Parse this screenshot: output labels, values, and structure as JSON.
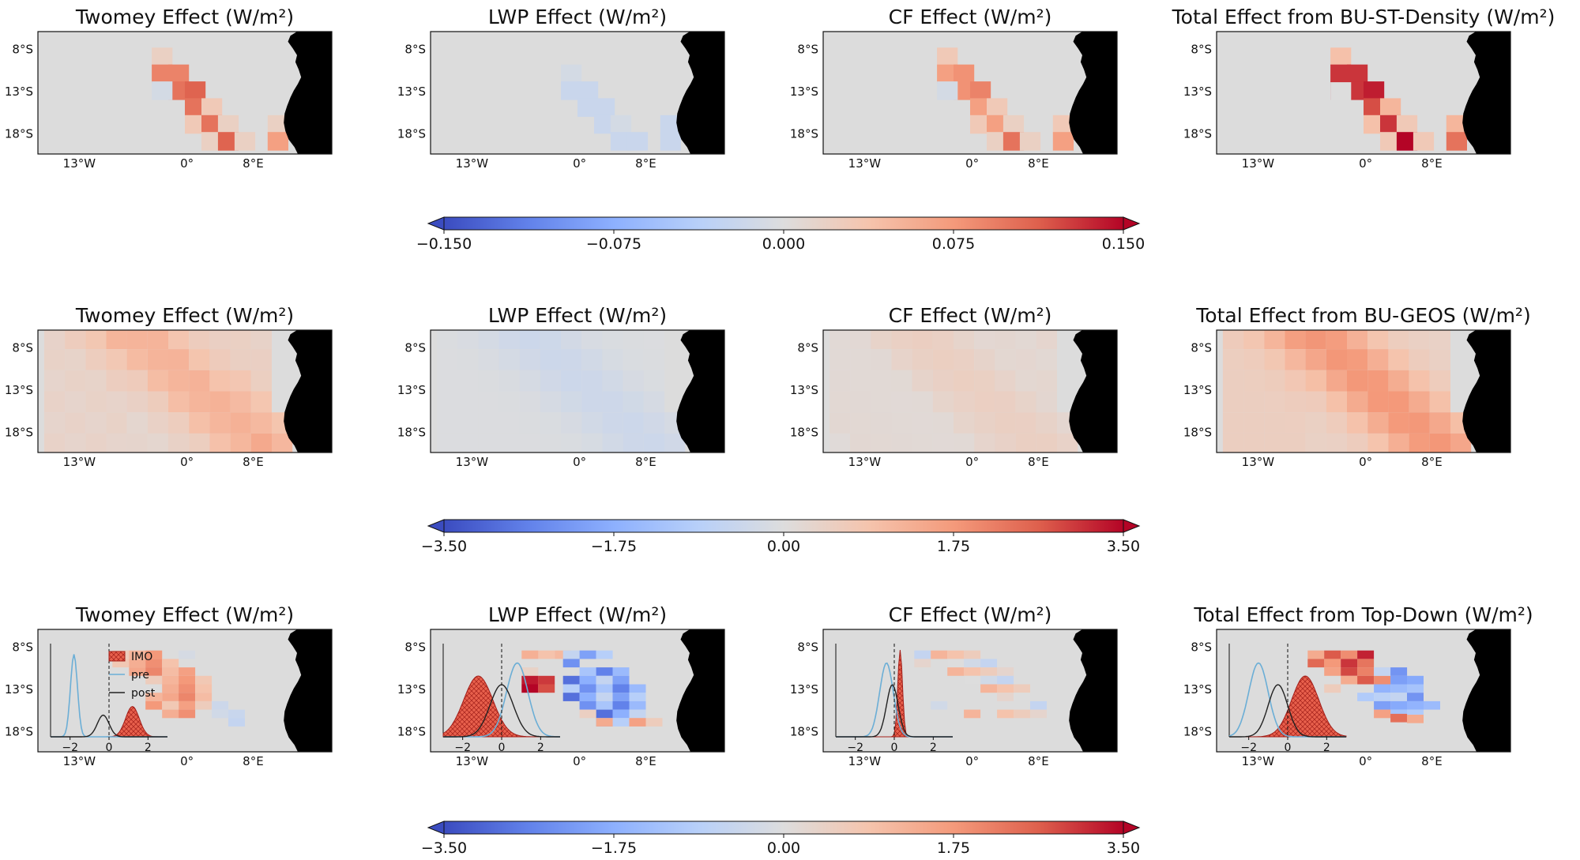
{
  "figure": {
    "rows": [
      {
        "titles": [
          "Twomey Effect (W/m²)",
          "LWP Effect (W/m²)",
          "CF Effect (W/m²)",
          "Total Effect from BU-ST-Density (W/m²)"
        ],
        "colorbar": {
          "ticks": [
            "−0.150",
            "−0.075",
            "0.000",
            "0.075",
            "0.150"
          ],
          "vmin": -0.15,
          "vmax": 0.15
        }
      },
      {
        "titles": [
          "Twomey Effect (W/m²)",
          "LWP Effect (W/m²)",
          "CF Effect (W/m²)",
          "Total Effect from BU-GEOS (W/m²)"
        ],
        "colorbar": {
          "ticks": [
            "−3.50",
            "−1.75",
            "0.00",
            "1.75",
            "3.50"
          ],
          "vmin": -3.5,
          "vmax": 3.5
        }
      },
      {
        "titles": [
          "Twomey Effect (W/m²)",
          "LWP Effect (W/m²)",
          "CF Effect (W/m²)",
          "Total Effect from Top-Down (W/m²)"
        ],
        "colorbar": {
          "ticks": [
            "−3.50",
            "−1.75",
            "0.00",
            "1.75",
            "3.50"
          ],
          "vmin": -3.5,
          "vmax": 3.5
        }
      }
    ],
    "map_axes": {
      "lat_ticks": [
        "8°S",
        "13°S",
        "18°S"
      ],
      "lon_ticks": [
        "13°W",
        "0°",
        "8°E"
      ]
    },
    "inset": {
      "x_ticks": [
        "−2",
        "0",
        "2"
      ],
      "legend": [
        "IMO",
        "pre",
        "post"
      ]
    },
    "colors": {
      "land": "#000000",
      "ocean": "#dcdcdc",
      "neg": "#3b4cc0",
      "pos": "#b40426",
      "pre": "#6baed6",
      "post": "#222222",
      "imo": "#e8604c"
    }
  },
  "chart_data": [
    {
      "type": "heatmap",
      "panel": "row1-twomey",
      "units": "W/m2",
      "cells_lonlat_value": [
        [
          -3,
          -9,
          0.02
        ],
        [
          -3,
          -11,
          0.09
        ],
        [
          -1,
          -11,
          0.09
        ],
        [
          -1,
          -13,
          0.1
        ],
        [
          1,
          -13,
          0.11
        ],
        [
          1,
          -15,
          0.1
        ],
        [
          3,
          -15,
          0.03
        ],
        [
          1,
          -17,
          0.03
        ],
        [
          3,
          -17,
          0.1
        ],
        [
          5,
          -17,
          0.02
        ],
        [
          3,
          -19,
          0.02
        ],
        [
          5,
          -19,
          0.11
        ],
        [
          7,
          -19,
          0.02
        ],
        [
          11,
          -17,
          0.02
        ],
        [
          11,
          -19,
          0.07
        ],
        [
          -3,
          -13,
          -0.01
        ]
      ]
    },
    {
      "type": "heatmap",
      "panel": "row1-lwp",
      "units": "W/m2",
      "cells_lonlat_value": [
        [
          -1,
          -11,
          -0.01
        ],
        [
          -1,
          -13,
          -0.02
        ],
        [
          1,
          -13,
          -0.02
        ],
        [
          1,
          -15,
          -0.02
        ],
        [
          3,
          -15,
          -0.02
        ],
        [
          3,
          -17,
          -0.02
        ],
        [
          5,
          -17,
          -0.01
        ],
        [
          5,
          -19,
          -0.02
        ],
        [
          7,
          -19,
          -0.02
        ],
        [
          11,
          -17,
          -0.02
        ],
        [
          11,
          -19,
          -0.02
        ]
      ]
    },
    {
      "type": "heatmap",
      "panel": "row1-cf",
      "units": "W/m2",
      "cells_lonlat_value": [
        [
          -3,
          -9,
          0.03
        ],
        [
          -3,
          -11,
          0.07
        ],
        [
          -1,
          -11,
          0.08
        ],
        [
          -1,
          -13,
          0.08
        ],
        [
          1,
          -13,
          0.09
        ],
        [
          1,
          -15,
          0.07
        ],
        [
          3,
          -15,
          0.03
        ],
        [
          1,
          -17,
          0.03
        ],
        [
          3,
          -17,
          0.07
        ],
        [
          5,
          -17,
          0.02
        ],
        [
          3,
          -19,
          0.02
        ],
        [
          5,
          -19,
          0.1
        ],
        [
          7,
          -19,
          0.02
        ],
        [
          11,
          -17,
          0.03
        ],
        [
          11,
          -19,
          0.07
        ],
        [
          -3,
          -13,
          -0.01
        ]
      ]
    },
    {
      "type": "heatmap",
      "panel": "row1-total",
      "units": "W/m2",
      "cells_lonlat_value": [
        [
          -3,
          -9,
          0.04
        ],
        [
          -3,
          -11,
          0.13
        ],
        [
          -1,
          -11,
          0.13
        ],
        [
          -3,
          -13,
          0.13
        ],
        [
          -1,
          -13,
          0.13
        ],
        [
          1,
          -13,
          0.14
        ],
        [
          -3,
          -13.1,
          0.0
        ],
        [
          1,
          -15,
          0.12
        ],
        [
          3,
          -15,
          0.05
        ],
        [
          1,
          -17,
          0.04
        ],
        [
          3,
          -17,
          0.13
        ],
        [
          5,
          -17,
          0.03
        ],
        [
          3,
          -19,
          0.03
        ],
        [
          5,
          -19,
          0.15
        ],
        [
          7,
          -19,
          0.03
        ],
        [
          11,
          -17,
          0.05
        ],
        [
          11,
          -19,
          0.1
        ]
      ]
    },
    {
      "type": "heatmap",
      "panel": "row2-twomey",
      "units": "W/m2",
      "pattern": "broad weak positive, max about 1.2 along -2 to 4 lon diagonal"
    },
    {
      "type": "heatmap",
      "panel": "row2-lwp",
      "units": "W/m2",
      "pattern": "weak negative about -0.3 along diagonal"
    },
    {
      "type": "heatmap",
      "panel": "row2-cf",
      "units": "W/m2",
      "pattern": "weak positive about 0.5"
    },
    {
      "type": "heatmap",
      "panel": "row2-total",
      "units": "W/m2",
      "pattern": "positive up to about 1.5 along diagonal"
    },
    {
      "type": "heatmap",
      "panel": "row3-twomey",
      "units": "W/m2",
      "pattern": "positive 0.5-2.0 along -6..4 lon diagonal, few small negative cells near 4..6E",
      "inset": {
        "imo_peak": 1.2,
        "pre_peak": -1.8,
        "post_peak": -0.3
      }
    },
    {
      "type": "heatmap",
      "panel": "row3-lwp",
      "units": "W/m2",
      "pattern": "negative -1 to -3 centered near 2E 13S, positive cells near -2E 12S",
      "inset": {
        "imo_peak": -1.2,
        "pre_peak": 0.8,
        "post_peak": 0.0
      }
    },
    {
      "type": "heatmap",
      "panel": "row3-cf",
      "units": "W/m2",
      "pattern": "mostly weak positive/negative below 1",
      "inset": {
        "imo_peak": 0.3,
        "pre_peak": -0.4,
        "post_peak": -0.1
      }
    },
    {
      "type": "heatmap",
      "panel": "row3-total",
      "units": "W/m2",
      "pattern": "positive 1.5-3 near -3..1E 9-13S, negative -1 to -2 near 2..6E 13-16S",
      "inset": {
        "imo_peak": 0.9,
        "pre_peak": -1.5,
        "post_peak": -0.5
      }
    }
  ]
}
